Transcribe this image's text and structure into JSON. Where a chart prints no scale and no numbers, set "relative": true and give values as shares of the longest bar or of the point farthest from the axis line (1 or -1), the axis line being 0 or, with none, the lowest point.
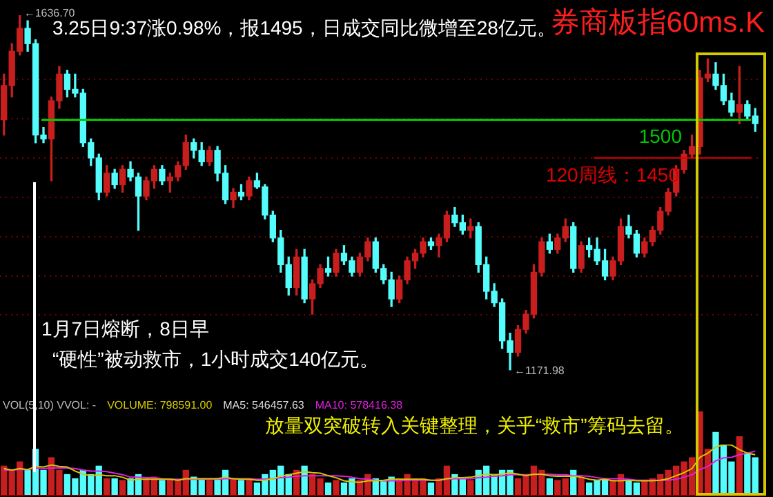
{
  "chart_data": [
    {
      "type": "candlestick",
      "title": "券商板指60ms.K",
      "subtitle": "3.25日9:37涨0.98%，报1495，日成交同比微增至28亿元。",
      "categories": [
        null,
        null,
        null,
        null,
        null,
        null,
        null,
        null,
        null,
        null,
        null,
        null,
        null,
        null,
        null,
        null,
        null,
        null,
        null,
        null,
        null,
        null,
        null,
        null,
        null,
        null,
        null,
        null,
        null,
        null,
        null,
        null,
        null,
        null,
        null,
        null,
        null,
        null,
        null,
        null,
        null,
        null,
        null,
        null,
        null,
        null,
        null,
        null,
        null,
        null,
        null,
        null,
        null,
        null,
        null,
        null,
        null,
        null,
        null,
        null,
        null,
        null,
        null,
        null,
        null,
        null,
        null,
        null,
        null,
        null,
        null,
        null,
        null,
        null,
        null,
        null,
        null,
        null,
        null,
        null,
        null,
        null,
        null,
        null,
        null,
        null,
        null,
        null,
        null,
        null,
        null,
        null,
        null,
        null,
        null,
        null
      ],
      "ohlc": [
        [
          1500,
          1560,
          1480,
          1545
        ],
        [
          1545,
          1600,
          1530,
          1590
        ],
        [
          1590,
          1636.7,
          1585,
          1620
        ],
        [
          1620,
          1630,
          1590,
          1600
        ],
        [
          1600,
          1605,
          1470,
          1480
        ],
        [
          1480,
          1490,
          1470,
          1475
        ],
        [
          1475,
          1530,
          1420,
          1525
        ],
        [
          1525,
          1570,
          1515,
          1560
        ],
        [
          1560,
          1565,
          1530,
          1540
        ],
        [
          1540,
          1560,
          1530,
          1535
        ],
        [
          1535,
          1540,
          1465,
          1470
        ],
        [
          1470,
          1475,
          1440,
          1450
        ],
        [
          1450,
          1455,
          1395,
          1405
        ],
        [
          1405,
          1440,
          1400,
          1430
        ],
        [
          1430,
          1435,
          1410,
          1415
        ],
        [
          1415,
          1440,
          1405,
          1435
        ],
        [
          1435,
          1445,
          1420,
          1425
        ],
        [
          1425,
          1430,
          1355,
          1400
        ],
        [
          1400,
          1425,
          1395,
          1420
        ],
        [
          1420,
          1440,
          1410,
          1435
        ],
        [
          1435,
          1440,
          1415,
          1420
        ],
        [
          1420,
          1430,
          1405,
          1425
        ],
        [
          1425,
          1445,
          1420,
          1440
        ],
        [
          1440,
          1480,
          1435,
          1470
        ],
        [
          1470,
          1475,
          1450,
          1460
        ],
        [
          1460,
          1470,
          1440,
          1445
        ],
        [
          1445,
          1465,
          1440,
          1460
        ],
        [
          1460,
          1465,
          1420,
          1430
        ],
        [
          1430,
          1440,
          1390,
          1395
        ],
        [
          1395,
          1410,
          1385,
          1405
        ],
        [
          1405,
          1415,
          1395,
          1400
        ],
        [
          1400,
          1425,
          1395,
          1420
        ],
        [
          1420,
          1430,
          1410,
          1412
        ],
        [
          1412,
          1415,
          1370,
          1375
        ],
        [
          1375,
          1380,
          1340,
          1345
        ],
        [
          1345,
          1355,
          1300,
          1310
        ],
        [
          1310,
          1320,
          1270,
          1280
        ],
        [
          1280,
          1330,
          1270,
          1320
        ],
        [
          1320,
          1330,
          1260,
          1265
        ],
        [
          1265,
          1290,
          1245,
          1285
        ],
        [
          1285,
          1310,
          1280,
          1305
        ],
        [
          1305,
          1320,
          1295,
          1300
        ],
        [
          1300,
          1330,
          1295,
          1325
        ],
        [
          1325,
          1335,
          1310,
          1315
        ],
        [
          1315,
          1320,
          1295,
          1300
        ],
        [
          1300,
          1325,
          1295,
          1320
        ],
        [
          1320,
          1345,
          1315,
          1340
        ],
        [
          1340,
          1345,
          1300,
          1305
        ],
        [
          1305,
          1310,
          1285,
          1290
        ],
        [
          1290,
          1300,
          1255,
          1265
        ],
        [
          1265,
          1295,
          1260,
          1290
        ],
        [
          1290,
          1320,
          1285,
          1315
        ],
        [
          1315,
          1330,
          1305,
          1325
        ],
        [
          1325,
          1345,
          1320,
          1340
        ],
        [
          1340,
          1345,
          1330,
          1335
        ],
        [
          1335,
          1350,
          1320,
          1345
        ],
        [
          1345,
          1380,
          1340,
          1375
        ],
        [
          1375,
          1385,
          1360,
          1365
        ],
        [
          1365,
          1375,
          1350,
          1355
        ],
        [
          1355,
          1370,
          1345,
          1360
        ],
        [
          1360,
          1365,
          1300,
          1310
        ],
        [
          1310,
          1320,
          1265,
          1275
        ],
        [
          1275,
          1285,
          1255,
          1260
        ],
        [
          1260,
          1265,
          1200,
          1210
        ],
        [
          1210,
          1220,
          1171.98,
          1195
        ],
        [
          1195,
          1230,
          1190,
          1225
        ],
        [
          1225,
          1250,
          1220,
          1245
        ],
        [
          1245,
          1310,
          1240,
          1300
        ],
        [
          1300,
          1345,
          1295,
          1340
        ],
        [
          1340,
          1350,
          1325,
          1330
        ],
        [
          1330,
          1350,
          1325,
          1345
        ],
        [
          1345,
          1370,
          1340,
          1360
        ],
        [
          1360,
          1365,
          1300,
          1305
        ],
        [
          1305,
          1340,
          1300,
          1335
        ],
        [
          1335,
          1345,
          1320,
          1330
        ],
        [
          1330,
          1345,
          1310,
          1315
        ],
        [
          1315,
          1330,
          1290,
          1295
        ],
        [
          1295,
          1320,
          1290,
          1315
        ],
        [
          1315,
          1370,
          1310,
          1360
        ],
        [
          1360,
          1375,
          1345,
          1350
        ],
        [
          1350,
          1355,
          1320,
          1325
        ],
        [
          1325,
          1345,
          1320,
          1340
        ],
        [
          1340,
          1360,
          1335,
          1355
        ],
        [
          1355,
          1385,
          1350,
          1380
        ],
        [
          1380,
          1410,
          1375,
          1405
        ],
        [
          1405,
          1440,
          1400,
          1435
        ],
        [
          1435,
          1460,
          1430,
          1455
        ],
        [
          1455,
          1480,
          1450,
          1465
        ],
        [
          1465,
          1565,
          1455,
          1555
        ],
        [
          1555,
          1580,
          1550,
          1560
        ],
        [
          1560,
          1575,
          1540,
          1545
        ],
        [
          1545,
          1560,
          1520,
          1525
        ],
        [
          1525,
          1535,
          1505,
          1510
        ],
        [
          1510,
          1570,
          1495,
          1520
        ],
        [
          1520,
          1525,
          1500,
          1505
        ],
        [
          1505,
          1515,
          1485,
          1495
        ]
      ],
      "colors": [
        "#c81e1e",
        "#c81e1e",
        "#c81e1e",
        "#54fcfc",
        "#54fcfc",
        "#54fcfc",
        "#c81e1e",
        "#c81e1e",
        "#54fcfc",
        "#54fcfc",
        "#54fcfc",
        "#54fcfc",
        "#54fcfc",
        "#c81e1e",
        "#54fcfc",
        "#c81e1e",
        "#54fcfc",
        "#54fcfc",
        "#c81e1e",
        "#c81e1e",
        "#54fcfc",
        "#c81e1e",
        "#c81e1e",
        "#c81e1e",
        "#54fcfc",
        "#54fcfc",
        "#c81e1e",
        "#54fcfc",
        "#54fcfc",
        "#c81e1e",
        "#54fcfc",
        "#c81e1e",
        "#54fcfc",
        "#54fcfc",
        "#54fcfc",
        "#54fcfc",
        "#54fcfc",
        "#c81e1e",
        "#54fcfc",
        "#c81e1e",
        "#c81e1e",
        "#54fcfc",
        "#c81e1e",
        "#54fcfc",
        "#54fcfc",
        "#c81e1e",
        "#c81e1e",
        "#54fcfc",
        "#54fcfc",
        "#54fcfc",
        "#c81e1e",
        "#c81e1e",
        "#c81e1e",
        "#c81e1e",
        "#54fcfc",
        "#c81e1e",
        "#c81e1e",
        "#54fcfc",
        "#54fcfc",
        "#c81e1e",
        "#54fcfc",
        "#54fcfc",
        "#54fcfc",
        "#54fcfc",
        "#54fcfc",
        "#c81e1e",
        "#c81e1e",
        "#c81e1e",
        "#c81e1e",
        "#54fcfc",
        "#c81e1e",
        "#c81e1e",
        "#54fcfc",
        "#c81e1e",
        "#54fcfc",
        "#54fcfc",
        "#54fcfc",
        "#c81e1e",
        "#c81e1e",
        "#54fcfc",
        "#54fcfc",
        "#c81e1e",
        "#c81e1e",
        "#c81e1e",
        "#c81e1e",
        "#c81e1e",
        "#c81e1e",
        "#c81e1e",
        "#c81e1e",
        "#c81e1e",
        "#54fcfc",
        "#54fcfc",
        "#54fcfc",
        "#c81e1e",
        "#54fcfc",
        "#54fcfc"
      ],
      "yticks": [
        {
          "value": 1244,
          "label": null
        },
        {
          "value": 1295,
          "label": null
        },
        {
          "value": 1347,
          "label": null
        },
        {
          "value": 1398,
          "label": null
        },
        {
          "value": 1450,
          "label": null
        },
        {
          "value": 1501,
          "label": null
        },
        {
          "value": 1553,
          "label": null
        }
      ],
      "grid": "y",
      "ref_lines": [
        {
          "axis": "y",
          "value": 1500,
          "label": "1500",
          "color": "#00c800"
        },
        {
          "axis": "y",
          "value": 1450,
          "label": "120周线：1450",
          "color": "#e00000"
        }
      ],
      "annotations": [
        "←1636.70",
        "←1171.98",
        "1月7日熔断，8日早",
        "“硬性”被动救市，1小时成交140亿元。"
      ]
    },
    {
      "type": "bar",
      "relative": true,
      "categories": [
        null,
        null,
        null,
        null,
        null,
        null,
        null,
        null,
        null,
        null,
        null,
        null,
        null,
        null,
        null,
        null,
        null,
        null,
        null,
        null,
        null,
        null,
        null,
        null,
        null,
        null,
        null,
        null,
        null,
        null,
        null,
        null,
        null,
        null,
        null,
        null,
        null,
        null,
        null,
        null,
        null,
        null,
        null,
        null,
        null,
        null,
        null,
        null,
        null,
        null,
        null,
        null,
        null,
        null,
        null,
        null,
        null,
        null,
        null,
        null,
        null,
        null,
        null,
        null,
        null,
        null,
        null,
        null,
        null,
        null,
        null,
        null,
        null,
        null,
        null,
        null,
        null,
        null,
        null,
        null,
        null,
        null,
        null,
        null,
        null,
        null,
        null,
        null,
        null,
        null,
        null,
        null,
        null,
        null,
        null,
        null
      ],
      "colors": [
        "#c81e1e",
        "#c81e1e",
        "#c81e1e",
        "#54fcfc",
        "#54fcfc",
        "#54fcfc",
        "#c81e1e",
        "#c81e1e",
        "#54fcfc",
        "#54fcfc",
        "#54fcfc",
        "#54fcfc",
        "#54fcfc",
        "#c81e1e",
        "#54fcfc",
        "#c81e1e",
        "#54fcfc",
        "#54fcfc",
        "#c81e1e",
        "#c81e1e",
        "#54fcfc",
        "#c81e1e",
        "#c81e1e",
        "#c81e1e",
        "#54fcfc",
        "#54fcfc",
        "#c81e1e",
        "#54fcfc",
        "#54fcfc",
        "#c81e1e",
        "#54fcfc",
        "#c81e1e",
        "#54fcfc",
        "#54fcfc",
        "#54fcfc",
        "#54fcfc",
        "#54fcfc",
        "#c81e1e",
        "#54fcfc",
        "#c81e1e",
        "#c81e1e",
        "#54fcfc",
        "#c81e1e",
        "#54fcfc",
        "#54fcfc",
        "#c81e1e",
        "#c81e1e",
        "#54fcfc",
        "#54fcfc",
        "#54fcfc",
        "#c81e1e",
        "#c81e1e",
        "#c81e1e",
        "#c81e1e",
        "#54fcfc",
        "#c81e1e",
        "#c81e1e",
        "#54fcfc",
        "#54fcfc",
        "#c81e1e",
        "#54fcfc",
        "#54fcfc",
        "#54fcfc",
        "#54fcfc",
        "#54fcfc",
        "#c81e1e",
        "#c81e1e",
        "#c81e1e",
        "#c81e1e",
        "#54fcfc",
        "#c81e1e",
        "#c81e1e",
        "#54fcfc",
        "#c81e1e",
        "#54fcfc",
        "#54fcfc",
        "#54fcfc",
        "#c81e1e",
        "#c81e1e",
        "#54fcfc",
        "#54fcfc",
        "#c81e1e",
        "#c81e1e",
        "#c81e1e",
        "#c81e1e",
        "#c81e1e",
        "#c81e1e",
        "#c81e1e",
        "#c81e1e",
        "#c81e1e",
        "#54fcfc",
        "#54fcfc",
        "#54fcfc",
        "#c81e1e",
        "#54fcfc",
        "#54fcfc"
      ],
      "values": [
        0.35,
        0.3,
        0.4,
        0.3,
        0.55,
        0.3,
        0.45,
        0.3,
        0.25,
        0.2,
        0.3,
        0.25,
        0.35,
        0.2,
        0.2,
        0.18,
        0.2,
        0.25,
        0.2,
        0.22,
        0.18,
        0.2,
        0.18,
        0.3,
        0.22,
        0.2,
        0.18,
        0.2,
        0.3,
        0.2,
        0.18,
        0.2,
        0.15,
        0.25,
        0.3,
        0.35,
        0.25,
        0.3,
        0.35,
        0.25,
        0.2,
        0.15,
        0.18,
        0.15,
        0.2,
        0.18,
        0.25,
        0.2,
        0.18,
        0.22,
        0.2,
        0.25,
        0.2,
        0.2,
        0.15,
        0.2,
        0.35,
        0.25,
        0.2,
        0.18,
        0.3,
        0.35,
        0.25,
        0.3,
        0.3,
        0.2,
        0.25,
        0.35,
        0.3,
        0.2,
        0.18,
        0.2,
        0.3,
        0.22,
        0.15,
        0.18,
        0.2,
        0.18,
        0.25,
        0.18,
        0.15,
        0.18,
        0.2,
        0.25,
        0.3,
        0.35,
        0.4,
        0.45,
        1.0,
        0.55,
        0.75,
        0.6,
        0.4,
        0.7,
        0.5,
        0.45
      ],
      "annotations": [
        "VOL(5,10) VVOL: -",
        "VOLUME: 798591.00",
        "MA5: 546457.63",
        "MA10: 578416.38",
        "放量双突破转入关键整理，关乎“救市”筹码去留。"
      ]
    },
    {
      "type": "line",
      "relative": true,
      "marker": "none",
      "categories": [
        null,
        null,
        null,
        null,
        null,
        null,
        null,
        null,
        null,
        null,
        null,
        null,
        null,
        null,
        null,
        null,
        null,
        null,
        null,
        null,
        null,
        null,
        null,
        null,
        null,
        null,
        null,
        null,
        null,
        null,
        null,
        null,
        null,
        null,
        null,
        null,
        null,
        null,
        null,
        null,
        null,
        null,
        null,
        null,
        null,
        null,
        null,
        null,
        null,
        null,
        null,
        null,
        null,
        null,
        null,
        null,
        null,
        null,
        null,
        null,
        null,
        null,
        null,
        null,
        null,
        null,
        null,
        null,
        null,
        null,
        null,
        null,
        null,
        null,
        null,
        null,
        null,
        null,
        null,
        null,
        null,
        null,
        null,
        null,
        null,
        null,
        null,
        null,
        null,
        null,
        null,
        null,
        null,
        null,
        null,
        null
      ],
      "series": [
        {
          "color": "#d4c800",
          "values": [
            0.53,
            0.5,
            0.53,
            0.51,
            0.57,
            0.56,
            0.6,
            0.57,
            0.56,
            0.48,
            0.42,
            0.39,
            0.41,
            0.39,
            0.39,
            0.36,
            0.3,
            0.32,
            0.32,
            0.32,
            0.32,
            0.32,
            0.3,
            0.33,
            0.33,
            0.33,
            0.33,
            0.33,
            0.36,
            0.33,
            0.32,
            0.32,
            0.3,
            0.3,
            0.33,
            0.38,
            0.41,
            0.44,
            0.47,
            0.45,
            0.44,
            0.39,
            0.35,
            0.29,
            0.27,
            0.26,
            0.29,
            0.29,
            0.3,
            0.32,
            0.32,
            0.32,
            0.32,
            0.32,
            0.3,
            0.3,
            0.33,
            0.35,
            0.35,
            0.36,
            0.39,
            0.42,
            0.41,
            0.42,
            0.45,
            0.42,
            0.39,
            0.42,
            0.42,
            0.39,
            0.38,
            0.38,
            0.38,
            0.36,
            0.32,
            0.3,
            0.32,
            0.29,
            0.29,
            0.3,
            0.29,
            0.29,
            0.29,
            0.3,
            0.33,
            0.39,
            0.45,
            0.53,
            0.75,
            0.83,
            0.95,
            1.0,
            0.99,
            0.9,
            0.83,
            0.8
          ]
        },
        {
          "color": "#e020e0",
          "values": [
            0.5,
            0.5,
            0.51,
            0.51,
            0.54,
            0.53,
            0.54,
            0.54,
            0.54,
            0.53,
            0.5,
            0.48,
            0.48,
            0.47,
            0.44,
            0.41,
            0.36,
            0.36,
            0.35,
            0.35,
            0.33,
            0.32,
            0.32,
            0.32,
            0.32,
            0.32,
            0.32,
            0.32,
            0.33,
            0.33,
            0.33,
            0.33,
            0.32,
            0.32,
            0.33,
            0.35,
            0.36,
            0.38,
            0.39,
            0.39,
            0.39,
            0.39,
            0.39,
            0.38,
            0.36,
            0.33,
            0.32,
            0.3,
            0.29,
            0.29,
            0.29,
            0.3,
            0.3,
            0.3,
            0.3,
            0.3,
            0.32,
            0.33,
            0.33,
            0.33,
            0.35,
            0.36,
            0.38,
            0.39,
            0.41,
            0.41,
            0.41,
            0.41,
            0.42,
            0.42,
            0.41,
            0.41,
            0.39,
            0.39,
            0.38,
            0.35,
            0.33,
            0.33,
            0.33,
            0.32,
            0.3,
            0.3,
            0.3,
            0.3,
            0.3,
            0.32,
            0.36,
            0.41,
            0.51,
            0.57,
            0.68,
            0.74,
            0.75,
            0.8,
            0.83,
            0.87
          ]
        }
      ]
    }
  ]
}
